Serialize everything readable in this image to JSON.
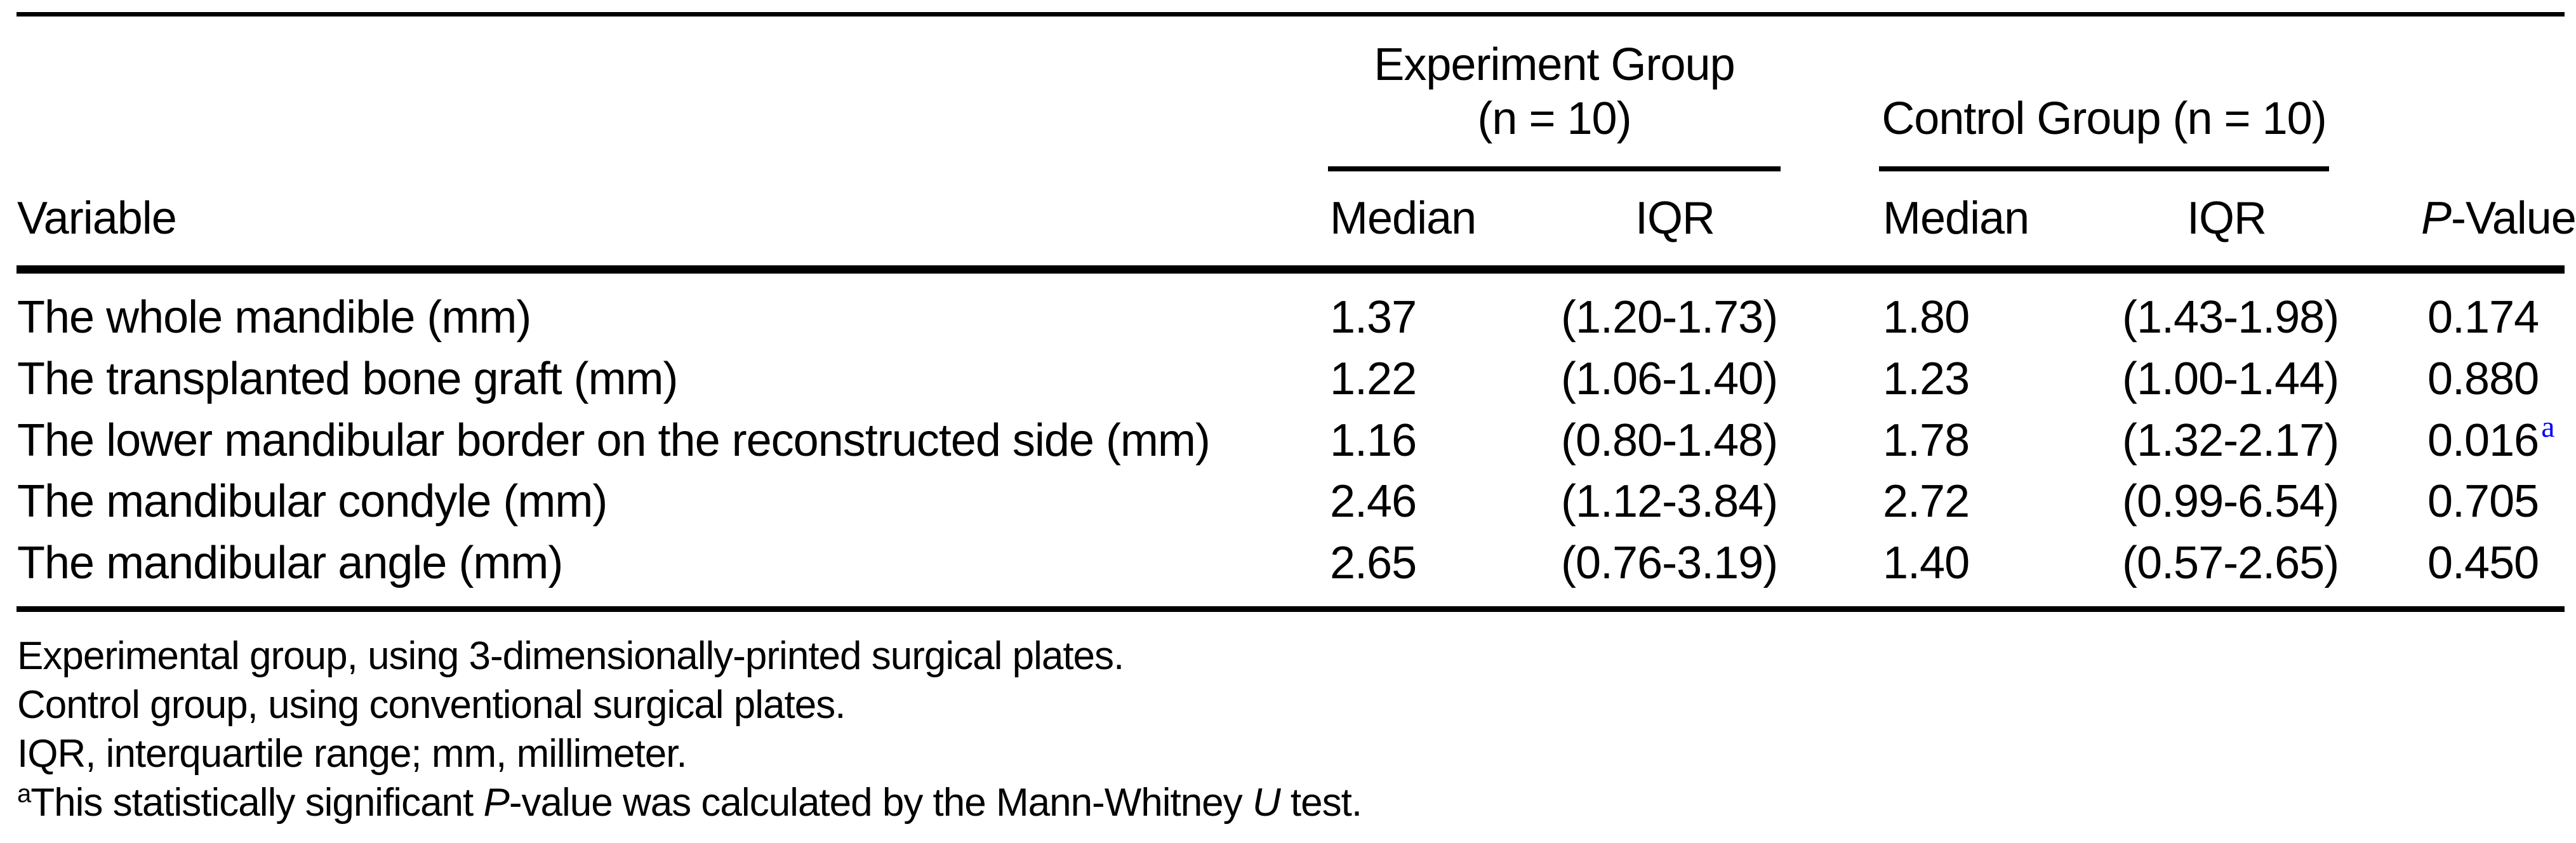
{
  "colors": {
    "background": "#ffffff",
    "text": "#000000",
    "significant_superscript_blue": "#0000FF",
    "rules": "#000000"
  },
  "table": {
    "group_headers": {
      "experiment": {
        "line1": "Experiment Group",
        "line2": "(n = 10)"
      },
      "control": {
        "label": "Control Group (n = 10)"
      }
    },
    "column_headers": {
      "variable": "Variable",
      "exp_median": "Median",
      "exp_iqr": "IQR",
      "ctrl_median": "Median",
      "ctrl_iqr": "IQR",
      "p_italic": "P",
      "p_rest": "-Value"
    },
    "rows": [
      {
        "variable": "The whole mandible (mm)",
        "exp_median": "1.37",
        "exp_iqr": "(1.20-1.73)",
        "ctrl_median": "1.80",
        "ctrl_iqr": "(1.43-1.98)",
        "p_value": "0.174",
        "p_superscript": ""
      },
      {
        "variable": "The transplanted bone graft (mm)",
        "exp_median": "1.22",
        "exp_iqr": "(1.06-1.40)",
        "ctrl_median": "1.23",
        "ctrl_iqr": "(1.00-1.44)",
        "p_value": "0.880",
        "p_superscript": ""
      },
      {
        "variable": "The lower mandibular border on the reconstructed side (mm)",
        "exp_median": "1.16",
        "exp_iqr": "(0.80-1.48)",
        "ctrl_median": "1.78",
        "ctrl_iqr": "(1.32-2.17)",
        "p_value": "0.016",
        "p_superscript": "a"
      },
      {
        "variable": "The mandibular condyle (mm)",
        "exp_median": "2.46",
        "exp_iqr": "(1.12-3.84)",
        "ctrl_median": "2.72",
        "ctrl_iqr": "(0.99-6.54)",
        "p_value": "0.705",
        "p_superscript": ""
      },
      {
        "variable": "The mandibular angle (mm)",
        "exp_median": "2.65",
        "exp_iqr": "(0.76-3.19)",
        "ctrl_median": "1.40",
        "ctrl_iqr": "(0.57-2.65)",
        "p_value": "0.450",
        "p_superscript": ""
      }
    ]
  },
  "footnotes": {
    "line1": "Experimental group, using 3-dimensionally-printed surgical plates.",
    "line2": "Control group, using conventional surgical plates.",
    "line3": "IQR, interquartile range; mm, millimeter.",
    "line4_sup": "a",
    "line4_part1": "This statistically significant ",
    "line4_italic1": "P",
    "line4_part2": "-value was calculated by the Mann-Whitney ",
    "line4_italic2": "U",
    "line4_part3": " test."
  }
}
